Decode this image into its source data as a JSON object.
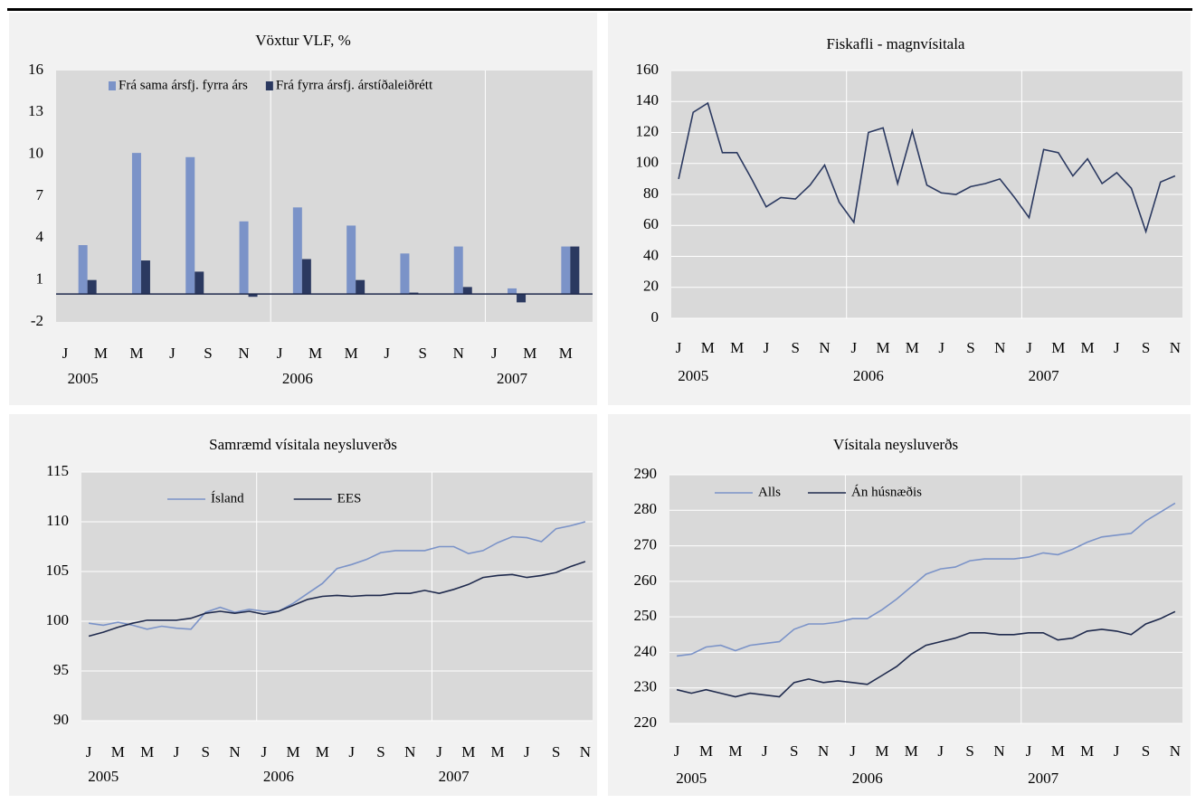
{
  "chart_data": [
    {
      "type": "bar",
      "title": "Vöxtur VLF, %",
      "categories": [
        "J",
        null,
        "M",
        null,
        "M",
        null,
        "J",
        null,
        "S",
        null,
        "N",
        null,
        "J",
        null,
        "M",
        null,
        "M",
        null,
        "J",
        null,
        "S",
        null,
        "N",
        null,
        "J",
        null,
        "M",
        null,
        "M",
        null
      ],
      "years": [
        "2005",
        "2006",
        "2007"
      ],
      "series": [
        {
          "name": "Frá sama ársfj. fyrra árs",
          "color": "#7b93c8",
          "values": [
            null,
            3.5,
            null,
            null,
            10.1,
            null,
            null,
            9.8,
            null,
            null,
            5.2,
            null,
            null,
            6.2,
            null,
            null,
            4.9,
            null,
            null,
            2.9,
            null,
            null,
            3.4,
            null,
            null,
            0.4,
            null,
            null,
            3.4,
            null
          ]
        },
        {
          "name": "Frá fyrra ársfj. árstíðaleiðrétt",
          "color": "#2b3960",
          "values": [
            null,
            1.0,
            null,
            null,
            2.4,
            null,
            null,
            1.6,
            null,
            null,
            -0.2,
            null,
            null,
            2.5,
            null,
            null,
            1.0,
            null,
            null,
            0.1,
            null,
            null,
            0.5,
            null,
            null,
            -0.6,
            null,
            null,
            3.4,
            null
          ]
        }
      ],
      "ylim": [
        -2,
        16
      ],
      "yticks": [
        -2,
        1,
        4,
        7,
        10,
        13,
        16
      ],
      "grid": false,
      "legend": "top"
    },
    {
      "type": "line",
      "title": "Fiskafli - magnvísitala",
      "categories": [
        "J",
        null,
        "M",
        null,
        "M",
        null,
        "J",
        null,
        "S",
        null,
        "N",
        null,
        "J",
        null,
        "M",
        null,
        "M",
        null,
        "J",
        null,
        "S",
        null,
        "N",
        null,
        "J",
        null,
        "M",
        null,
        "M",
        null,
        "J",
        null,
        "S",
        null,
        "N"
      ],
      "years": [
        "2005",
        "2006",
        "2007"
      ],
      "values": [
        90,
        133,
        139,
        107,
        107,
        90,
        72,
        78,
        77,
        86,
        99,
        75,
        62,
        120,
        123,
        87,
        121,
        86,
        81,
        80,
        85,
        87,
        90,
        78,
        65,
        109,
        107,
        92,
        103,
        87,
        94,
        84,
        56,
        88,
        92
      ],
      "color": "#2b3960",
      "ylim": [
        0,
        160
      ],
      "yticks": [
        0,
        20,
        40,
        60,
        80,
        100,
        120,
        140,
        160
      ],
      "grid": true
    },
    {
      "type": "line",
      "title": "Samræmd vísitala neysluverðs",
      "categories": [
        "J",
        null,
        "M",
        null,
        "M",
        null,
        "J",
        null,
        "S",
        null,
        "N",
        null,
        "J",
        null,
        "M",
        null,
        "M",
        null,
        "J",
        null,
        "S",
        null,
        "N",
        null,
        "J",
        null,
        "M",
        null,
        "M",
        null,
        "J",
        null,
        "S",
        null,
        "N"
      ],
      "years": [
        "2005",
        "2006",
        "2007"
      ],
      "series": [
        {
          "name": "Ísland",
          "color": "#7b93c8",
          "values": [
            99.8,
            99.6,
            99.9,
            99.6,
            99.2,
            99.5,
            99.3,
            99.2,
            100.9,
            101.4,
            100.9,
            101.2,
            101.0,
            101.0,
            101.8,
            102.8,
            103.8,
            105.3,
            105.7,
            106.2,
            106.9,
            107.1,
            107.1,
            107.1,
            107.5,
            107.5,
            106.8,
            107.1,
            107.9,
            108.5,
            108.4,
            108.0,
            109.3,
            109.6,
            110.0
          ]
        },
        {
          "name": "EES",
          "color": "#1f2a4d",
          "values": [
            98.5,
            98.9,
            99.4,
            99.8,
            100.1,
            100.1,
            100.1,
            100.3,
            100.8,
            101.0,
            100.8,
            101.0,
            100.7,
            101.0,
            101.6,
            102.2,
            102.5,
            102.6,
            102.5,
            102.6,
            102.6,
            102.8,
            102.8,
            103.1,
            102.8,
            103.2,
            103.7,
            104.4,
            104.6,
            104.7,
            104.4,
            104.6,
            104.9,
            105.5,
            106.0
          ]
        }
      ],
      "ylim": [
        90,
        115
      ],
      "yticks": [
        90,
        95,
        100,
        105,
        110,
        115
      ],
      "grid": true,
      "legend": "top"
    },
    {
      "type": "line",
      "title": "Vísitala neysluverðs",
      "categories": [
        "J",
        null,
        "M",
        null,
        "M",
        null,
        "J",
        null,
        "S",
        null,
        "N",
        null,
        "J",
        null,
        "M",
        null,
        "M",
        null,
        "J",
        null,
        "S",
        null,
        "N",
        null,
        "J",
        null,
        "M",
        null,
        "M",
        null,
        "J",
        null,
        "S",
        null,
        "N"
      ],
      "years": [
        "2005",
        "2006",
        "2007"
      ],
      "series": [
        {
          "name": "Alls",
          "color": "#7b93c8",
          "values": [
            239.0,
            239.5,
            241.5,
            242.0,
            240.5,
            242.0,
            242.5,
            243.0,
            246.5,
            248.0,
            248.0,
            248.5,
            249.5,
            249.5,
            252.0,
            255.0,
            258.5,
            262.0,
            263.5,
            264.0,
            265.8,
            266.3,
            266.3,
            266.3,
            266.8,
            268.0,
            267.5,
            269.0,
            271.0,
            272.5,
            273.0,
            273.5,
            277.0,
            279.5,
            282.0
          ]
        },
        {
          "name": "Án húsnæðis",
          "color": "#1f2a4d",
          "values": [
            229.5,
            228.5,
            229.5,
            228.5,
            227.5,
            228.5,
            228.0,
            227.5,
            231.5,
            232.5,
            231.5,
            232.0,
            231.5,
            231.0,
            233.5,
            236.0,
            239.5,
            242.0,
            243.0,
            244.0,
            245.5,
            245.5,
            245.0,
            245.0,
            245.5,
            245.5,
            243.5,
            244.0,
            246.0,
            246.5,
            246.0,
            245.0,
            248.0,
            249.5,
            251.5
          ]
        }
      ],
      "ylim": [
        220,
        290
      ],
      "yticks": [
        220,
        230,
        240,
        250,
        260,
        270,
        280,
        290
      ],
      "grid": true,
      "legend": "top"
    }
  ]
}
